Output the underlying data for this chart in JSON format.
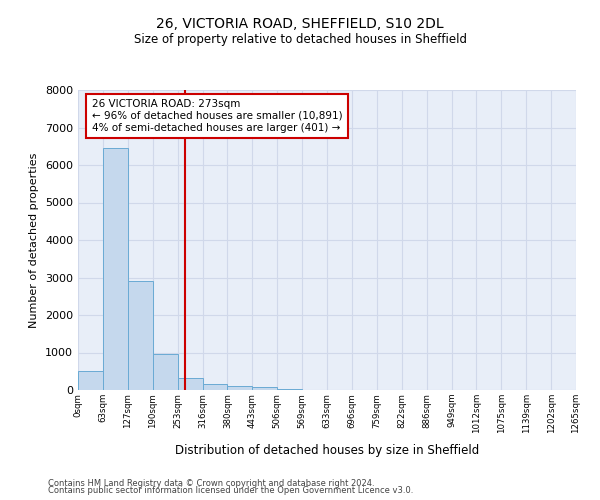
{
  "title1": "26, VICTORIA ROAD, SHEFFIELD, S10 2DL",
  "title2": "Size of property relative to detached houses in Sheffield",
  "xlabel": "Distribution of detached houses by size in Sheffield",
  "ylabel": "Number of detached properties",
  "bin_labels": [
    "0sqm",
    "63sqm",
    "127sqm",
    "190sqm",
    "253sqm",
    "316sqm",
    "380sqm",
    "443sqm",
    "506sqm",
    "569sqm",
    "633sqm",
    "696sqm",
    "759sqm",
    "822sqm",
    "886sqm",
    "949sqm",
    "1012sqm",
    "1075sqm",
    "1139sqm",
    "1202sqm",
    "1265sqm"
  ],
  "bar_values": [
    500,
    6450,
    2900,
    950,
    330,
    150,
    100,
    70,
    20,
    10,
    5,
    3,
    2,
    1,
    1,
    1,
    0,
    0,
    0,
    0
  ],
  "bar_color": "#c5d8ed",
  "bar_edge_color": "#6aaad4",
  "vline_x": 4.317,
  "vline_color": "#cc0000",
  "annotation_text": "26 VICTORIA ROAD: 273sqm\n← 96% of detached houses are smaller (10,891)\n4% of semi-detached houses are larger (401) →",
  "annotation_box_color": "#cc0000",
  "ylim": [
    0,
    8000
  ],
  "yticks": [
    0,
    1000,
    2000,
    3000,
    4000,
    5000,
    6000,
    7000,
    8000
  ],
  "grid_color": "#d0d8ea",
  "bg_color": "#e8eef8",
  "footer1": "Contains HM Land Registry data © Crown copyright and database right 2024.",
  "footer2": "Contains public sector information licensed under the Open Government Licence v3.0."
}
